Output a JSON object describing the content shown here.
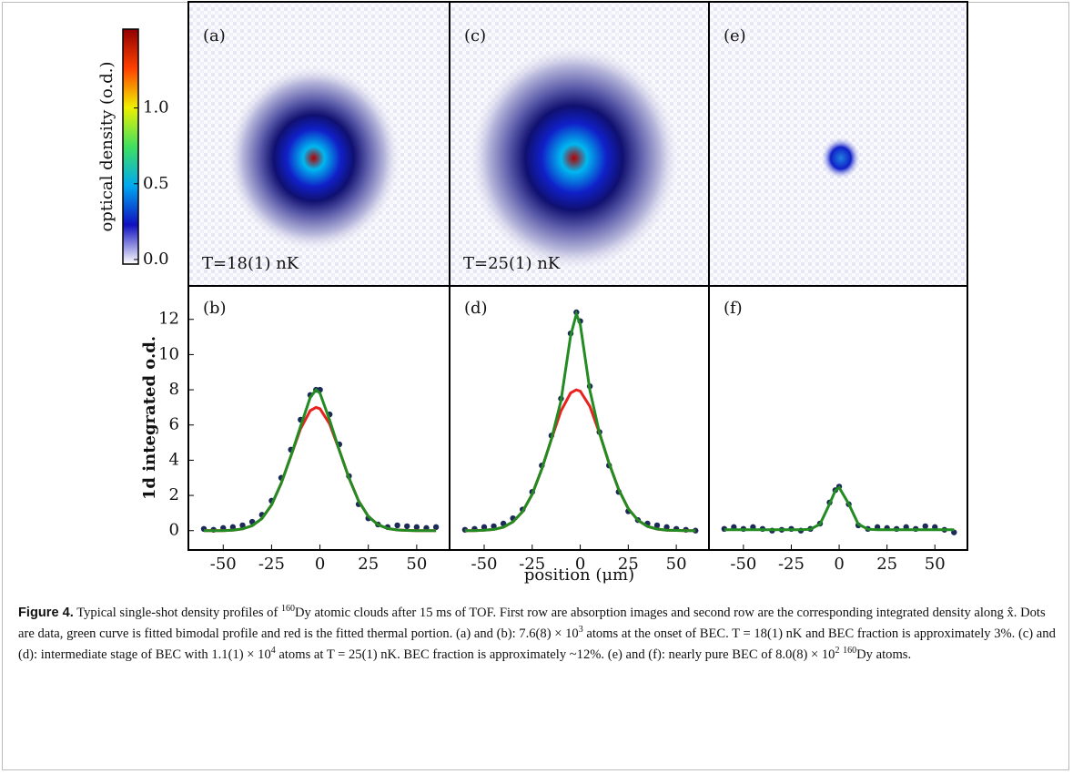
{
  "chart_data": [
    {
      "type": "colorbar",
      "label": "optical density (o.d.)",
      "ylim": [
        -0.03,
        1.52
      ],
      "yticks": [
        {
          "value": 0,
          "label": "0.0"
        },
        {
          "value": 0.5,
          "label": "0.5"
        },
        {
          "value": 1,
          "label": "1.0"
        }
      ],
      "colors": [
        "#ffffff",
        "#1010c0",
        "#00a8f0",
        "#40e060",
        "#f0f000",
        "#ff4000",
        "#900000"
      ]
    },
    {
      "type": "image",
      "panel": "(a)",
      "annotation": "T=18(1) nK"
    },
    {
      "type": "image",
      "panel": "(c)",
      "annotation": "T=25(1) nK"
    },
    {
      "type": "image",
      "panel": "(e)"
    },
    {
      "type": "line",
      "panel": "(b)",
      "ylabel": "1d integrated o.d.",
      "x": [
        -60,
        -55,
        -50,
        -45,
        -40,
        -35,
        -30,
        -25,
        -20,
        -15,
        -10,
        -5,
        -2,
        0,
        5,
        10,
        15,
        20,
        25,
        30,
        35,
        40,
        45,
        50,
        55,
        60
      ],
      "xlim": [
        -68,
        67
      ],
      "ylim": [
        -1.1,
        13.9
      ],
      "xticks": [
        -50,
        -25,
        0,
        25,
        50
      ],
      "yticks": [
        0,
        2,
        4,
        6,
        8,
        10,
        12
      ],
      "series": [
        {
          "mode": "markers",
          "color": "#1b2a58",
          "values": [
            0.1,
            0.05,
            0.15,
            0.2,
            0.3,
            0.5,
            0.9,
            1.7,
            3.0,
            4.6,
            6.3,
            7.7,
            8.0,
            8.0,
            6.6,
            4.9,
            3.1,
            1.5,
            0.7,
            0.35,
            0.2,
            0.3,
            0.25,
            0.2,
            0.15,
            0.2
          ]
        },
        {
          "mode": "line",
          "color": "#228b22",
          "values": [
            0,
            0,
            0,
            0.03,
            0.1,
            0.28,
            0.69,
            1.46,
            2.69,
            4.25,
            5.93,
            7.57,
            8.0,
            7.8,
            6.28,
            4.57,
            2.98,
            1.68,
            0.81,
            0.34,
            0.12,
            0.04,
            0.01,
            0,
            0,
            0
          ]
        },
        {
          "mode": "line",
          "color": "#e8231f",
          "values": [
            0,
            0,
            0,
            0.03,
            0.1,
            0.28,
            0.69,
            1.46,
            2.69,
            4.25,
            5.79,
            6.82,
            7.0,
            6.92,
            6.06,
            4.57,
            2.98,
            1.68,
            0.81,
            0.34,
            0.12,
            0.04,
            0.01,
            0,
            0,
            0
          ]
        }
      ]
    },
    {
      "type": "line",
      "panel": "(d)",
      "xlabel": "position  (μm)",
      "x": [
        -60,
        -55,
        -50,
        -45,
        -40,
        -35,
        -30,
        -25,
        -20,
        -15,
        -10,
        -5,
        -2,
        0,
        5,
        10,
        15,
        20,
        25,
        30,
        35,
        40,
        45,
        50,
        55,
        60
      ],
      "xlim": [
        -68,
        67
      ],
      "ylim": [
        -1.1,
        13.9
      ],
      "xticks": [
        -50,
        -25,
        0,
        25,
        50
      ],
      "series": [
        {
          "mode": "markers",
          "color": "#1b2a58",
          "values": [
            0.05,
            0.1,
            0.2,
            0.25,
            0.4,
            0.7,
            1.2,
            2.2,
            3.7,
            5.4,
            7.5,
            11.2,
            12.4,
            11.9,
            8.2,
            5.6,
            3.7,
            2.2,
            1.1,
            0.6,
            0.4,
            0.3,
            0.2,
            0.1,
            0.05,
            0
          ]
        },
        {
          "mode": "line",
          "color": "#228b22",
          "values": [
            0,
            0,
            0.02,
            0.07,
            0.2,
            0.5,
            1.08,
            2.07,
            3.5,
            5.2,
            7.38,
            11.07,
            12.3,
            11.71,
            7.99,
            5.54,
            3.83,
            2.34,
            1.25,
            0.59,
            0.24,
            0.09,
            0.03,
            0.01,
            0,
            0
          ]
        },
        {
          "mode": "line",
          "color": "#e8231f",
          "values": [
            0,
            0,
            0.02,
            0.07,
            0.2,
            0.5,
            1.08,
            2.07,
            3.5,
            5.2,
            6.8,
            7.82,
            8.0,
            7.92,
            7.06,
            5.54,
            3.83,
            2.34,
            1.25,
            0.59,
            0.24,
            0.09,
            0.03,
            0.01,
            0,
            0
          ]
        }
      ]
    },
    {
      "type": "line",
      "panel": "(f)",
      "x": [
        -60,
        -55,
        -50,
        -45,
        -40,
        -35,
        -30,
        -25,
        -20,
        -15,
        -10,
        -5,
        -2,
        0,
        5,
        10,
        15,
        20,
        25,
        30,
        35,
        40,
        45,
        50,
        55,
        60
      ],
      "xlim": [
        -68,
        67
      ],
      "ylim": [
        -1.1,
        13.9
      ],
      "xticks": [
        -50,
        -25,
        0,
        25,
        50
      ],
      "series": [
        {
          "mode": "markers",
          "color": "#1b2a58",
          "values": [
            0.1,
            0.2,
            0.1,
            0.2,
            0.1,
            0,
            0.05,
            0.1,
            0,
            0.1,
            0.4,
            1.6,
            2.3,
            2.5,
            1.5,
            0.3,
            0.1,
            0.2,
            0.15,
            0.1,
            0.2,
            0.1,
            0.25,
            0.2,
            0.05,
            -0.1
          ]
        },
        {
          "mode": "line",
          "color": "#228b22",
          "values": [
            0.05,
            0.05,
            0.05,
            0.05,
            0.05,
            0.05,
            0.05,
            0.05,
            0.05,
            0.08,
            0.37,
            1.51,
            2.27,
            2.45,
            1.51,
            0.37,
            0.08,
            0.05,
            0.05,
            0.05,
            0.05,
            0.05,
            0.05,
            0.05,
            0.05,
            0.05
          ]
        }
      ]
    }
  ],
  "caption": {
    "label": "Figure 4.",
    "runs": [
      " Typical single-shot density profiles of ",
      {
        "sup": "160"
      },
      "Dy atomic clouds after 15 ms of TOF. First row are absorption images and second row are the corresponding integrated density along x̂. Dots are data, green curve is fitted bimodal profile and red is the fitted thermal portion. (a) and (b): 7.6(8) × 10",
      {
        "sup": "3"
      },
      " atoms at the onset of BEC. T = 18(1) nK and BEC fraction is approximately 3%. (c) and (d): intermediate stage of BEC with 1.1(1) × 10",
      {
        "sup": "4"
      },
      " atoms at T = 25(1) nK. BEC fraction is approximately ~12%. (e) and (f): nearly pure BEC of 8.0(8) × 10",
      {
        "sup": "2"
      },
      " ",
      {
        "sup": "160"
      },
      "Dy atoms."
    ]
  }
}
